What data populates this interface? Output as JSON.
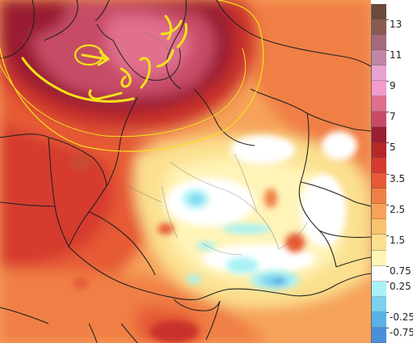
{
  "map": {
    "legend": {
      "labels": [
        "13",
        "11",
        "9",
        "7",
        "5",
        "3.5",
        "2.5",
        "1.5",
        "0.75",
        "0.25",
        "-0.25",
        "-0.75"
      ],
      "colors": [
        "#6b4a3a",
        "#8a5a52",
        "#a4697a",
        "#bf86a8",
        "#e8a2cf",
        "#f29bcc",
        "#e06f8e",
        "#c84b66",
        "#9a1f31",
        "#b42828",
        "#d63a2e",
        "#e65a36",
        "#f07f45",
        "#f6a25a",
        "#f9c36f",
        "#fbe08f",
        "#fff4b8",
        "#ffffff",
        "#a9f2f5",
        "#7ad2f0",
        "#5ab2e8",
        "#4a90d9"
      ]
    },
    "annotation_color": "#f4e21a",
    "annotation": "يزد ؟ سرد"
  }
}
